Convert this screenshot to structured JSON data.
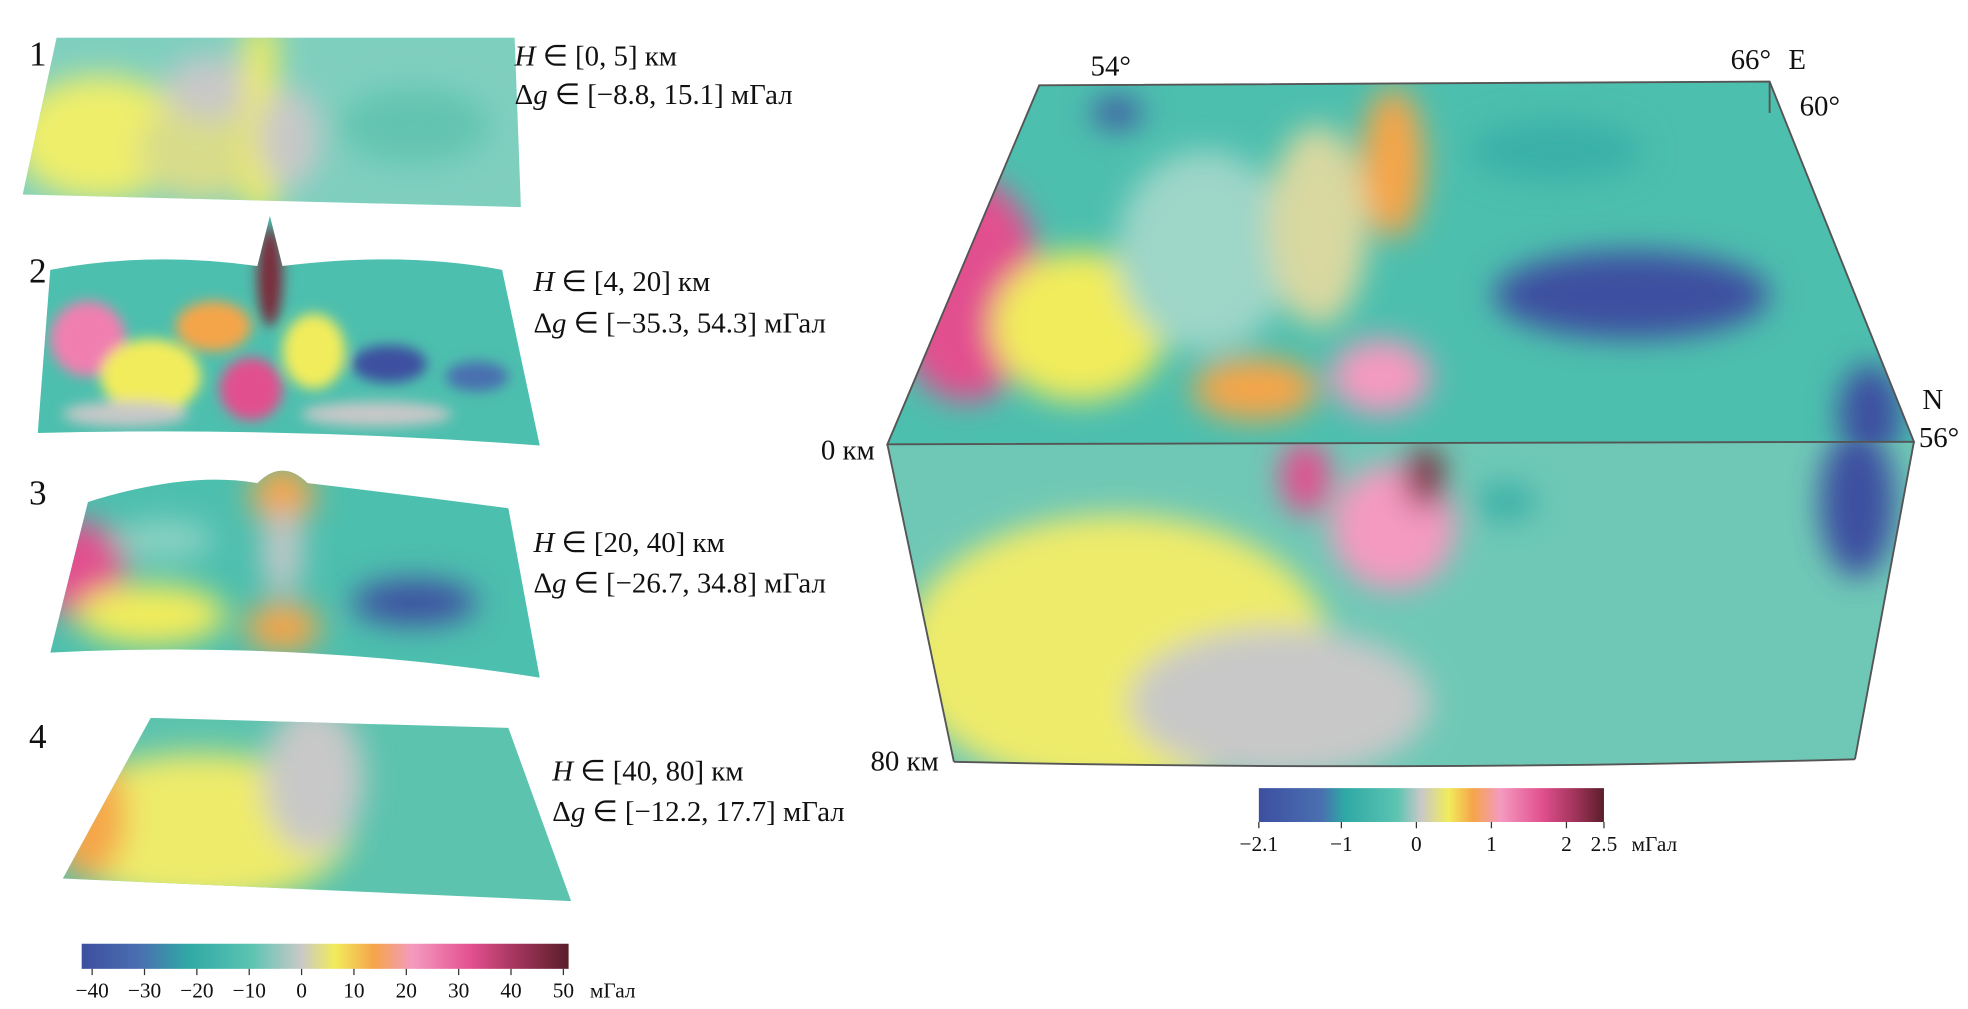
{
  "panels": [
    {
      "label": "1",
      "depth_var": "H",
      "depth_range": " ∈ [0, 5] км",
      "anomaly_prefix": "Δ",
      "anomaly_var": "g",
      "anomaly_range": " ∈ [−8.8, 15.1] мГал"
    },
    {
      "label": "2",
      "depth_var": "H",
      "depth_range": " ∈ [4, 20] км",
      "anomaly_prefix": "Δ",
      "anomaly_var": "g",
      "anomaly_range": " ∈ [−35.3, 54.3] мГал"
    },
    {
      "label": "3",
      "depth_var": "H",
      "depth_range": " ∈ [20, 40] км",
      "anomaly_prefix": "Δ",
      "anomaly_var": "g",
      "anomaly_range": " ∈ [−26.7, 34.8] мГал"
    },
    {
      "label": "4",
      "depth_var": "H",
      "depth_range": " ∈ [40, 80] км",
      "anomaly_prefix": "Δ",
      "anomaly_var": "g",
      "anomaly_range": " ∈ [−12.2, 17.7] мГал"
    }
  ],
  "left_colorbar": {
    "range": [
      -42,
      51
    ],
    "ticks": [
      {
        "value": -40,
        "label": "−40"
      },
      {
        "value": -30,
        "label": "−30"
      },
      {
        "value": -20,
        "label": "−20"
      },
      {
        "value": -10,
        "label": "−10"
      },
      0,
      10,
      20,
      30,
      40,
      50
    ],
    "unit": "мГал"
  },
  "block": {
    "lon_west": "54°",
    "lon_east": "66°",
    "east": "E",
    "lat_north": "60°",
    "north": "N",
    "lat_south": "56°",
    "depth_top": "0 км",
    "depth_bottom": "80 км"
  },
  "right_colorbar": {
    "range": [
      -2.1,
      2.5
    ],
    "ticks": [
      {
        "value": -2.1,
        "label": "−2.1"
      },
      {
        "value": -1,
        "label": "−1"
      },
      0,
      1,
      2,
      2.5
    ],
    "unit": "мГал"
  }
}
